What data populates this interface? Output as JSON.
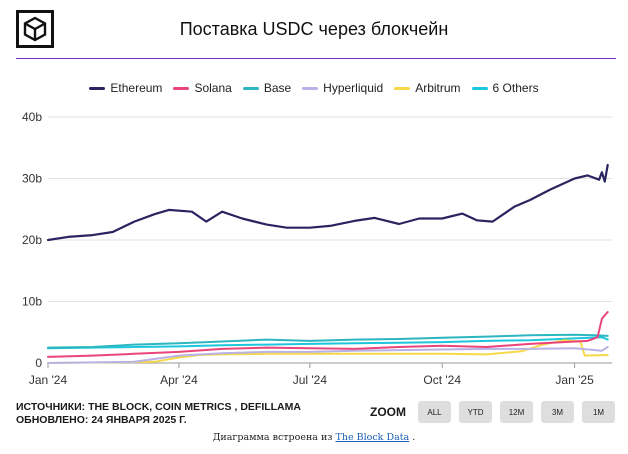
{
  "header": {
    "title": "Поставка USDC через блокчейн"
  },
  "footer": {
    "sources": "ИСТОЧНИКИ: THE BLOCK, COIN METRICS , DEFILLAMA",
    "updated": "ОБНОВЛЕНО: 24 ЯНВАРЯ 2025 Г.",
    "zoom_label": "ZOOM",
    "zoom_buttons": [
      "ALL",
      "YTD",
      "12M",
      "3M",
      "1M"
    ],
    "embed_prefix": "Диаграмма встроена из",
    "embed_link": "The Block Data",
    "embed_suffix": "."
  },
  "colors": {
    "accent_rule": "#7b2fbe",
    "grid": "#e3e3e3"
  },
  "chart_data": {
    "type": "line",
    "title": "Поставка USDC через блокчейн",
    "ylim": [
      0,
      40
    ],
    "y_ticks": [
      {
        "value": 0,
        "label": "0"
      },
      {
        "value": 10,
        "label": "10b"
      },
      {
        "value": 20,
        "label": "20b"
      },
      {
        "value": 30,
        "label": "30b"
      },
      {
        "value": 40,
        "label": "40b"
      }
    ],
    "x_ticks": [
      {
        "x": "2024-01-01",
        "label": "Jan '24"
      },
      {
        "x": "2024-04-01",
        "label": "Apr '24"
      },
      {
        "x": "2024-07-01",
        "label": "Jul '24"
      },
      {
        "x": "2024-10-01",
        "label": "Oct '24"
      },
      {
        "x": "2025-01-01",
        "label": "Jan '25"
      }
    ],
    "grid": true,
    "legend_position": "top",
    "series": [
      {
        "name": "Ethereum",
        "color": "#2a2560",
        "points": [
          [
            "2024-01-01",
            20.0
          ],
          [
            "2024-01-15",
            20.5
          ],
          [
            "2024-02-01",
            20.8
          ],
          [
            "2024-02-15",
            21.3
          ],
          [
            "2024-03-01",
            23.0
          ],
          [
            "2024-03-15",
            24.2
          ],
          [
            "2024-03-25",
            24.9
          ],
          [
            "2024-04-10",
            24.6
          ],
          [
            "2024-04-20",
            23.0
          ],
          [
            "2024-05-01",
            24.6
          ],
          [
            "2024-05-15",
            23.5
          ],
          [
            "2024-06-01",
            22.5
          ],
          [
            "2024-06-15",
            22.0
          ],
          [
            "2024-07-01",
            22.0
          ],
          [
            "2024-07-15",
            22.3
          ],
          [
            "2024-08-01",
            23.1
          ],
          [
            "2024-08-15",
            23.6
          ],
          [
            "2024-09-01",
            22.6
          ],
          [
            "2024-09-15",
            23.5
          ],
          [
            "2024-10-01",
            23.5
          ],
          [
            "2024-10-15",
            24.3
          ],
          [
            "2024-10-25",
            23.2
          ],
          [
            "2024-11-05",
            23.0
          ],
          [
            "2024-11-20",
            25.4
          ],
          [
            "2024-12-01",
            26.5
          ],
          [
            "2024-12-15",
            28.2
          ],
          [
            "2025-01-01",
            30.0
          ],
          [
            "2025-01-10",
            30.5
          ],
          [
            "2025-01-18",
            29.8
          ],
          [
            "2025-01-20",
            31.0
          ],
          [
            "2025-01-22",
            29.5
          ],
          [
            "2025-01-24",
            32.2
          ]
        ]
      },
      {
        "name": "Solana",
        "color": "#e9457a",
        "points": [
          [
            "2024-01-01",
            1.0
          ],
          [
            "2024-02-01",
            1.2
          ],
          [
            "2024-03-01",
            1.5
          ],
          [
            "2024-04-01",
            1.8
          ],
          [
            "2024-05-01",
            2.3
          ],
          [
            "2024-06-01",
            2.5
          ],
          [
            "2024-07-01",
            2.4
          ],
          [
            "2024-08-01",
            2.3
          ],
          [
            "2024-09-01",
            2.6
          ],
          [
            "2024-10-01",
            2.8
          ],
          [
            "2024-11-01",
            2.6
          ],
          [
            "2024-12-01",
            3.1
          ],
          [
            "2025-01-10",
            3.6
          ],
          [
            "2025-01-17",
            4.2
          ],
          [
            "2025-01-20",
            7.2
          ],
          [
            "2025-01-24",
            8.3
          ]
        ]
      },
      {
        "name": "Base",
        "color": "#2cb6c0",
        "points": [
          [
            "2024-01-01",
            2.5
          ],
          [
            "2024-02-01",
            2.6
          ],
          [
            "2024-03-01",
            3.0
          ],
          [
            "2024-04-01",
            3.2
          ],
          [
            "2024-05-01",
            3.5
          ],
          [
            "2024-06-01",
            3.8
          ],
          [
            "2024-07-01",
            3.6
          ],
          [
            "2024-08-01",
            3.8
          ],
          [
            "2024-09-01",
            3.9
          ],
          [
            "2024-10-01",
            4.1
          ],
          [
            "2024-11-01",
            4.3
          ],
          [
            "2024-12-01",
            4.5
          ],
          [
            "2025-01-01",
            4.6
          ],
          [
            "2025-01-15",
            4.5
          ],
          [
            "2025-01-24",
            4.4
          ]
        ]
      },
      {
        "name": "Hyperliquid",
        "color": "#b8b2e6",
        "points": [
          [
            "2024-01-01",
            0.0
          ],
          [
            "2024-03-01",
            0.2
          ],
          [
            "2024-04-01",
            1.2
          ],
          [
            "2024-05-01",
            1.6
          ],
          [
            "2024-06-01",
            1.8
          ],
          [
            "2024-07-01",
            1.8
          ],
          [
            "2024-08-01",
            2.0
          ],
          [
            "2024-09-01",
            2.1
          ],
          [
            "2024-10-01",
            2.2
          ],
          [
            "2024-11-01",
            2.3
          ],
          [
            "2024-12-01",
            2.3
          ],
          [
            "2025-01-01",
            2.4
          ],
          [
            "2025-01-20",
            2.0
          ],
          [
            "2025-01-24",
            2.6
          ]
        ]
      },
      {
        "name": "Arbitrum",
        "color": "#f5d94a",
        "points": [
          [
            "2024-01-01",
            0.0
          ],
          [
            "2024-03-15",
            0.2
          ],
          [
            "2024-04-01",
            0.9
          ],
          [
            "2024-04-15",
            1.3
          ],
          [
            "2024-05-01",
            1.4
          ],
          [
            "2024-06-01",
            1.5
          ],
          [
            "2024-07-01",
            1.5
          ],
          [
            "2024-08-01",
            1.5
          ],
          [
            "2024-09-01",
            1.5
          ],
          [
            "2024-10-01",
            1.5
          ],
          [
            "2024-11-01",
            1.4
          ],
          [
            "2024-11-25",
            1.9
          ],
          [
            "2024-12-10",
            3.0
          ],
          [
            "2024-12-25",
            3.7
          ],
          [
            "2025-01-05",
            3.5
          ],
          [
            "2025-01-08",
            1.2
          ],
          [
            "2025-01-24",
            1.3
          ]
        ]
      },
      {
        "name": "6 Others",
        "color": "#1cc7dd",
        "points": [
          [
            "2024-01-01",
            2.4
          ],
          [
            "2024-02-01",
            2.5
          ],
          [
            "2024-03-01",
            2.6
          ],
          [
            "2024-04-01",
            2.7
          ],
          [
            "2024-05-01",
            2.9
          ],
          [
            "2024-06-01",
            3.0
          ],
          [
            "2024-07-01",
            3.1
          ],
          [
            "2024-08-01",
            3.2
          ],
          [
            "2024-09-01",
            3.3
          ],
          [
            "2024-10-01",
            3.4
          ],
          [
            "2024-11-01",
            3.6
          ],
          [
            "2024-12-01",
            3.7
          ],
          [
            "2025-01-01",
            4.0
          ],
          [
            "2025-01-20",
            4.2
          ],
          [
            "2025-01-24",
            3.8
          ]
        ]
      }
    ]
  }
}
